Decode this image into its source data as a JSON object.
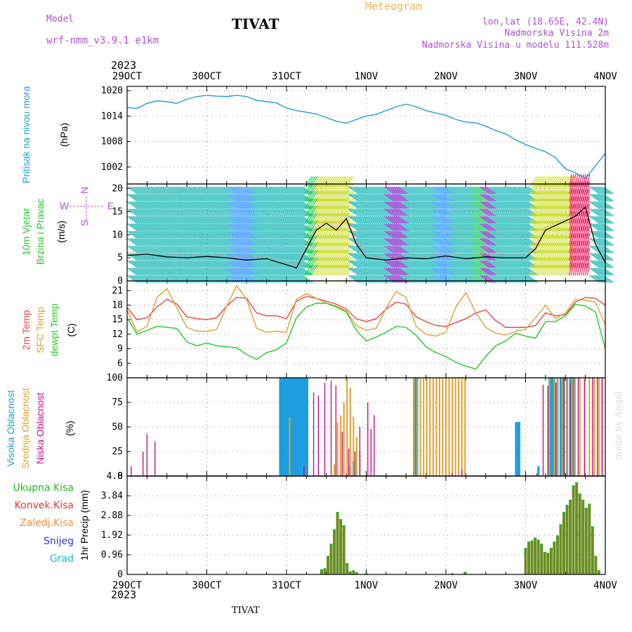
{
  "header": {
    "model_label": "Model",
    "model_name": "wrf-nmm_v3.9.1 e1km",
    "station": "TIVAT",
    "meteogram": "Meteogram",
    "meta_lines": [
      "lon,lat (18.65E, 42.4N)",
      "Nadmorska Visina 2m",
      "Nadmorska Visina u modelu 111.528m"
    ],
    "year": "2023",
    "footer_station": "TIVAT",
    "credit": "made by Angel"
  },
  "colors": {
    "pressure": "#1e9ee0",
    "temp2m": "#ee4444",
    "sfc": "#e0a030",
    "dewpt": "#22cc22",
    "high_cloud": "#1e9ee0",
    "mid_cloud": "#e0a030",
    "low_cloud": "#c0148c",
    "precip_total": "#22bb22",
    "precip_conv": "#ee3333",
    "precip_frz": "#ff8a33",
    "snow": "#3333dd",
    "hail": "#22bbbb",
    "precip_bar": "#6b8e23"
  },
  "chart_data": [
    {
      "type": "line",
      "name_label": "pressure",
      "ylabel_lines": [
        "Pritisak na nivou mora",
        "(hPa)"
      ],
      "x_ticks": [
        "29OCT",
        "30OCT",
        "31OCT",
        "1NOV",
        "2NOV",
        "3NOV",
        "4NOV"
      ],
      "xlim_days": [
        0,
        6
      ],
      "ylim": [
        998,
        1021
      ],
      "y_ticks": [
        1002,
        1008,
        1014,
        1020
      ],
      "x": [
        0,
        0.125,
        0.25,
        0.375,
        0.5,
        0.625,
        0.75,
        0.875,
        1,
        1.125,
        1.25,
        1.375,
        1.5,
        1.625,
        1.75,
        1.875,
        2,
        2.125,
        2.25,
        2.375,
        2.5,
        2.625,
        2.75,
        2.875,
        3,
        3.125,
        3.25,
        3.375,
        3.5,
        3.625,
        3.75,
        3.875,
        4,
        4.125,
        4.25,
        4.375,
        4.5,
        4.625,
        4.75,
        4.875,
        5,
        5.125,
        5.25,
        5.375,
        5.5,
        5.625,
        5.75,
        5.875,
        6
      ],
      "values": [
        1016,
        1015.8,
        1017,
        1017.6,
        1017.4,
        1017,
        1018,
        1018.6,
        1018.9,
        1018.7,
        1018.6,
        1018.9,
        1018.6,
        1017.7,
        1017.4,
        1017.1,
        1015.9,
        1015.3,
        1014.9,
        1014.5,
        1013.6,
        1012.8,
        1012.3,
        1013.2,
        1014,
        1014.4,
        1015.3,
        1016.2,
        1016.8,
        1016.2,
        1015.3,
        1014.7,
        1014.2,
        1013.2,
        1012.6,
        1012.4,
        1011.6,
        1010.6,
        1009.8,
        1008.4,
        1007.3,
        1006.4,
        1005.6,
        1004.2,
        1001.6,
        1000.6,
        999.3,
        1002.2,
        1005.2
      ]
    },
    {
      "type": "line",
      "name_label": "wind",
      "ylabel_lines": [
        "10m Vjetar",
        "Brzina i Pravac",
        "(m/s)"
      ],
      "xlim_days": [
        0,
        6
      ],
      "ylim": [
        0,
        21
      ],
      "y_ticks": [
        0,
        5,
        10,
        15,
        20
      ],
      "compass": [
        "N",
        "E",
        "S",
        "W"
      ],
      "x": [
        0,
        0.25,
        0.5,
        0.75,
        1,
        1.25,
        1.5,
        1.75,
        2,
        2.125,
        2.25,
        2.375,
        2.5,
        2.625,
        2.75,
        2.875,
        3,
        3.25,
        3.5,
        3.75,
        4,
        4.25,
        4.5,
        4.75,
        5,
        5.125,
        5.25,
        5.375,
        5.5,
        5.625,
        5.75,
        5.875,
        6
      ],
      "values": [
        5.5,
        5.8,
        5.2,
        5,
        5.3,
        5,
        4.5,
        4.8,
        3.5,
        2.8,
        7,
        11,
        12.5,
        11,
        13.5,
        8,
        5,
        4.5,
        5,
        4.8,
        5.4,
        4.8,
        5.2,
        5,
        5,
        7,
        11,
        12,
        13,
        14,
        16,
        8,
        4
      ]
    },
    {
      "type": "line",
      "name_label": "temperature",
      "ylabel_lines": [
        "2m Temp",
        "SFC Temp",
        "dewpt Temp",
        "(C)"
      ],
      "series_names": [
        "2m Temp",
        "SFC Temp",
        "dewpt Temp"
      ],
      "xlim_days": [
        0,
        6
      ],
      "ylim": [
        3,
        23
      ],
      "y_ticks": [
        6,
        9,
        12,
        15,
        18,
        21
      ],
      "x": [
        0,
        0.125,
        0.25,
        0.375,
        0.5,
        0.625,
        0.75,
        0.875,
        1,
        1.125,
        1.25,
        1.375,
        1.5,
        1.625,
        1.75,
        1.875,
        2,
        2.125,
        2.25,
        2.375,
        2.5,
        2.625,
        2.75,
        2.875,
        3,
        3.125,
        3.25,
        3.375,
        3.5,
        3.625,
        3.75,
        3.875,
        4,
        4.125,
        4.25,
        4.375,
        4.5,
        4.625,
        4.75,
        4.875,
        5,
        5.125,
        5.25,
        5.375,
        5.5,
        5.625,
        5.75,
        5.875,
        6
      ],
      "series": [
        {
          "values": [
            17.5,
            15,
            15.4,
            17.6,
            19.2,
            18.2,
            15.6,
            15.2,
            15,
            15.4,
            17.8,
            19.6,
            19.4,
            16.4,
            15.8,
            15.8,
            15.2,
            18.8,
            19.8,
            19.4,
            18.8,
            18.2,
            17.2,
            15.2,
            14.6,
            15.2,
            17.2,
            18.6,
            18.2,
            15.6,
            14.6,
            13.8,
            13.6,
            14.4,
            15.2,
            16.4,
            17,
            14.8,
            13.4,
            13.4,
            13.4,
            13.8,
            16.4,
            15.8,
            16,
            18.6,
            19.6,
            19.4,
            18
          ]
        },
        {
          "values": [
            17,
            12.5,
            13.6,
            19.6,
            21.4,
            17.4,
            13.4,
            12.6,
            12.6,
            13,
            17.8,
            22,
            19.2,
            13.2,
            12.4,
            12.6,
            12.4,
            19.2,
            20.4,
            19.4,
            18.4,
            17.8,
            16.8,
            13.8,
            12.8,
            13.2,
            17.4,
            20.8,
            19.6,
            13.6,
            12,
            11.6,
            12.4,
            17.6,
            20.6,
            16.4,
            13.4,
            12.2,
            11.8,
            12.6,
            13,
            15.4,
            18,
            15.2,
            16.4,
            19.2,
            19,
            18.6,
            14
          ]
        },
        {
          "values": [
            15.4,
            12,
            12.8,
            13.6,
            13.4,
            13.2,
            10.4,
            9.6,
            10.2,
            9.6,
            9.4,
            9.2,
            7.8,
            6.8,
            8.2,
            8.8,
            10.2,
            15.4,
            17.6,
            18.4,
            18.4,
            17.6,
            16.6,
            12.8,
            10.6,
            11.4,
            12.4,
            13.6,
            13.4,
            11.8,
            9.4,
            8.2,
            7.4,
            6.2,
            5.4,
            4.8,
            7.4,
            9.6,
            10.6,
            12.2,
            11.6,
            11.2,
            14.6,
            14.6,
            15.8,
            18.2,
            17.8,
            16.6,
            9
          ]
        }
      ]
    },
    {
      "type": "bar",
      "name_label": "cloud",
      "ylabel_lines": [
        "Visoka Oblacnost",
        "Srednja Oblacnost",
        "Niska Oblacnost",
        "(%)"
      ],
      "series_names": [
        "Visoka Oblacnost",
        "Srednja Oblacnost",
        "Niska Oblacnost"
      ],
      "xlim_days": [
        0,
        6
      ],
      "ylim": [
        0,
        100
      ],
      "y_ticks": [
        0,
        25,
        50,
        75,
        100
      ],
      "series": [
        {
          "points": [
            [
              1.92,
              100
            ],
            [
              1.94,
              100
            ],
            [
              1.96,
              100
            ],
            [
              1.98,
              100
            ],
            [
              2,
              100
            ],
            [
              2.02,
              100
            ],
            [
              2.04,
              100
            ],
            [
              2.06,
              100
            ],
            [
              2.08,
              100
            ],
            [
              2.1,
              100
            ],
            [
              2.12,
              100
            ],
            [
              2.14,
              100
            ],
            [
              2.16,
              100
            ],
            [
              2.18,
              100
            ],
            [
              2.2,
              100
            ],
            [
              2.22,
              100
            ],
            [
              2.24,
              100
            ],
            [
              2.26,
              100
            ],
            [
              2.8,
              10
            ],
            [
              2.84,
              15
            ],
            [
              3.6,
              100
            ],
            [
              3.62,
              100
            ],
            [
              3.64,
              100
            ],
            [
              4.88,
              55
            ],
            [
              4.9,
              55
            ],
            [
              4.92,
              55
            ],
            [
              5.16,
              10
            ],
            [
              5.3,
              100
            ],
            [
              5.32,
              100
            ],
            [
              5.34,
              100
            ],
            [
              5.36,
              100
            ],
            [
              5.4,
              100
            ],
            [
              5.44,
              100
            ],
            [
              5.48,
              100
            ],
            [
              5.52,
              100
            ],
            [
              5.56,
              100
            ],
            [
              5.6,
              100
            ]
          ]
        },
        {
          "points": [
            [
              2.04,
              60
            ],
            [
              2.6,
              12
            ],
            [
              2.64,
              55
            ],
            [
              2.68,
              62
            ],
            [
              2.72,
              75
            ],
            [
              2.76,
              100
            ],
            [
              2.8,
              90
            ],
            [
              2.84,
              60
            ],
            [
              2.88,
              40
            ],
            [
              2.92,
              25
            ],
            [
              3.6,
              100
            ],
            [
              3.64,
              100
            ],
            [
              3.68,
              100
            ],
            [
              3.72,
              100
            ],
            [
              3.76,
              100
            ],
            [
              3.8,
              100
            ],
            [
              3.84,
              100
            ],
            [
              3.88,
              100
            ],
            [
              3.92,
              100
            ],
            [
              3.96,
              100
            ],
            [
              4,
              100
            ],
            [
              4.04,
              100
            ],
            [
              4.08,
              100
            ],
            [
              4.12,
              100
            ],
            [
              4.16,
              100
            ],
            [
              4.2,
              100
            ],
            [
              4.24,
              100
            ],
            [
              5.3,
              100
            ],
            [
              5.36,
              100
            ],
            [
              5.4,
              100
            ],
            [
              5.46,
              100
            ],
            [
              5.52,
              100
            ],
            [
              5.58,
              100
            ],
            [
              5.62,
              100
            ],
            [
              5.68,
              100
            ],
            [
              5.74,
              100
            ],
            [
              5.8,
              100
            ],
            [
              5.86,
              100
            ],
            [
              5.92,
              100
            ],
            [
              5.96,
              100
            ]
          ]
        },
        {
          "points": [
            [
              0.05,
              10
            ],
            [
              0.2,
              25
            ],
            [
              0.25,
              43
            ],
            [
              0.35,
              35
            ],
            [
              2.22,
              10
            ],
            [
              2.34,
              85
            ],
            [
              2.4,
              82
            ],
            [
              2.48,
              95
            ],
            [
              2.56,
              97
            ],
            [
              2.62,
              92
            ],
            [
              2.7,
              45
            ],
            [
              2.78,
              28
            ],
            [
              2.86,
              25
            ],
            [
              2.92,
              50
            ],
            [
              3.02,
              75
            ],
            [
              3.06,
              48
            ],
            [
              3.1,
              62
            ],
            [
              4.08,
              3
            ],
            [
              4.2,
              7
            ],
            [
              5.14,
              3
            ],
            [
              5.22,
              93
            ],
            [
              5.28,
              92
            ],
            [
              5.38,
              95
            ],
            [
              5.48,
              100
            ],
            [
              5.56,
              95
            ],
            [
              5.66,
              100
            ],
            [
              5.74,
              98
            ],
            [
              5.84,
              100
            ],
            [
              5.9,
              100
            ],
            [
              5.96,
              100
            ]
          ]
        }
      ]
    },
    {
      "type": "bar",
      "name_label": "precipitation",
      "ylabel_lines": [
        "1hr Precip (mm)"
      ],
      "legend": [
        "Ukupna Kisa",
        "Konvek.Kisa",
        "Zaledj.Kisa",
        "Snijeg",
        "Grad"
      ],
      "xlim_days": [
        0,
        6
      ],
      "ylim": [
        0,
        4.8
      ],
      "y_ticks": [
        0,
        0.96,
        1.92,
        2.88,
        3.84,
        4.8
      ],
      "y_tick_labels": [
        "0",
        "0.96",
        "1.92",
        "2.88",
        "3.84",
        "4.8"
      ],
      "x_ticks_bottom": [
        "29OCT",
        "30OCT",
        "31OCT",
        "1NOV",
        "2NOV",
        "3NOV",
        "4NOV"
      ],
      "points": [
        [
          2.44,
          0.25
        ],
        [
          2.48,
          0.3
        ],
        [
          2.52,
          0.9
        ],
        [
          2.56,
          1.5
        ],
        [
          2.6,
          2.2
        ],
        [
          2.64,
          3.05
        ],
        [
          2.68,
          2.7
        ],
        [
          2.72,
          2.4
        ],
        [
          2.76,
          0.55
        ],
        [
          2.8,
          0.15
        ],
        [
          2.84,
          0.2
        ],
        [
          2.88,
          0.12
        ],
        [
          3.0,
          0.08
        ],
        [
          4.08,
          0.05
        ],
        [
          4.24,
          0.12
        ],
        [
          5.0,
          1.3
        ],
        [
          5.04,
          1.6
        ],
        [
          5.08,
          1.65
        ],
        [
          5.12,
          1.8
        ],
        [
          5.16,
          1.7
        ],
        [
          5.2,
          1.5
        ],
        [
          5.24,
          1.1
        ],
        [
          5.28,
          1.05
        ],
        [
          5.32,
          1.3
        ],
        [
          5.36,
          1.6
        ],
        [
          5.4,
          1.9
        ],
        [
          5.44,
          2.45
        ],
        [
          5.48,
          3.05
        ],
        [
          5.52,
          3.4
        ],
        [
          5.56,
          3.65
        ],
        [
          5.6,
          4.35
        ],
        [
          5.64,
          4.5
        ],
        [
          5.68,
          3.95
        ],
        [
          5.72,
          3.65
        ],
        [
          5.76,
          3.25
        ],
        [
          5.8,
          3.45
        ],
        [
          5.84,
          2.35
        ],
        [
          5.88,
          0.9
        ],
        [
          5.92,
          0.2
        ]
      ]
    }
  ]
}
